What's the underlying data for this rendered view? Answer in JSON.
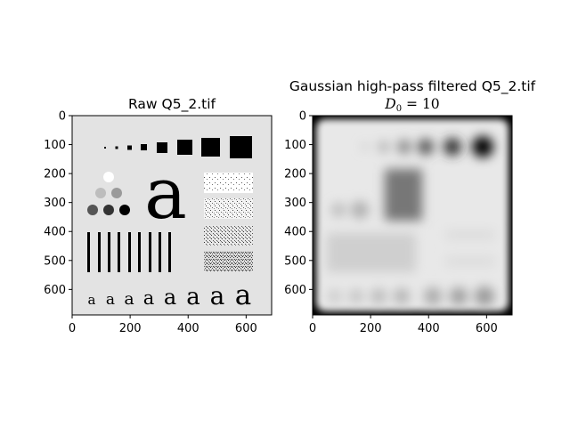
{
  "chart_data": [
    {
      "type": "image",
      "title": "Raw Q5_2.tif",
      "xlim": [
        0,
        688
      ],
      "ylim": [
        688,
        0
      ],
      "xticks": [
        0,
        200,
        400,
        600
      ],
      "yticks": [
        0,
        100,
        200,
        300,
        400,
        500,
        600
      ]
    },
    {
      "type": "image",
      "title": "Gaussian high-pass filtered Q5_2.tif",
      "subtitle_prefix": "D",
      "subtitle_sub": "0",
      "subtitle_suffix": " = 10",
      "xlim": [
        0,
        688
      ],
      "ylim": [
        688,
        0
      ],
      "xticks": [
        0,
        200,
        400,
        600
      ],
      "yticks": [
        0,
        100,
        200,
        300,
        400,
        500,
        600
      ]
    }
  ],
  "colors": {
    "raw_background": "#e3e3e3",
    "filtered_background": "#e8e8e8",
    "ink": "#000000"
  }
}
